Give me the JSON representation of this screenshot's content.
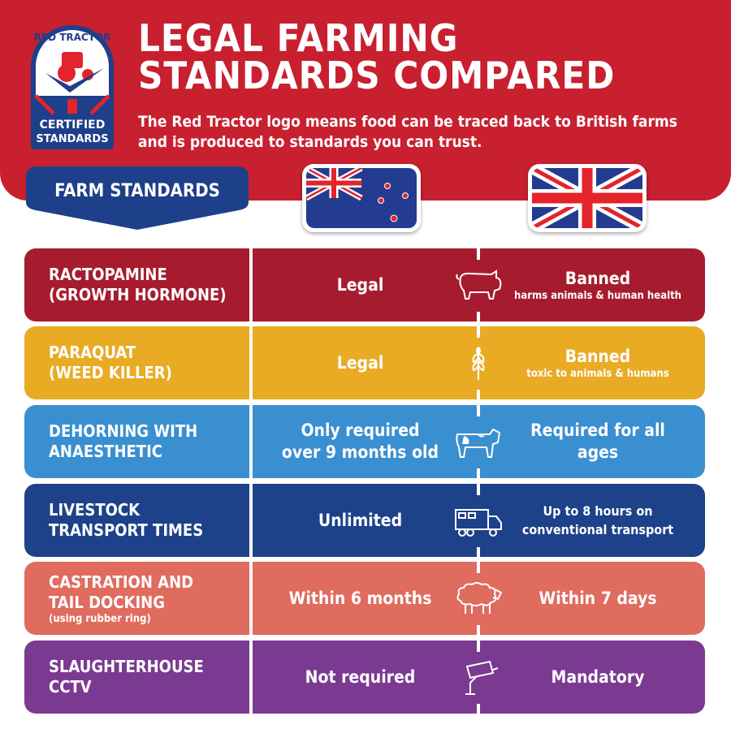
{
  "logo": {
    "top_text": "RED TRACTOR",
    "bottom_line1": "CERTIFIED",
    "bottom_line2": "STANDARDS"
  },
  "header": {
    "title_line1": "LEGAL FARMING",
    "title_line2": "STANDARDS COMPARED",
    "subtitle": "The Red Tractor logo means food can be traced back to British farms and is produced to standards you can trust."
  },
  "column_header": "FARM STANDARDS",
  "flags": [
    "new-zealand-flag",
    "united-kingdom-flag"
  ],
  "rows": [
    {
      "label1": "RACTOPAMINE",
      "label2": "(GROWTH HORMONE)",
      "note": "",
      "nz": "Legal",
      "icon": "pig-icon",
      "uk": "Banned",
      "uk_note": "harms animals & human health",
      "color": "#a61c2e"
    },
    {
      "label1": "PARAQUAT",
      "label2": "(WEED KILLER)",
      "note": "",
      "nz": "Legal",
      "icon": "wheat-icon",
      "uk": "Banned",
      "uk_note": "toxic to animals & humans",
      "color": "#e9ab24"
    },
    {
      "label1": "DEHORNING WITH",
      "label2": "ANAESTHETIC",
      "note": "",
      "nz": "Only required over 9 months old",
      "icon": "cow-icon",
      "uk": "Required for all ages",
      "uk_note": "",
      "color": "#3a8fd0"
    },
    {
      "label1": "LIVESTOCK",
      "label2": "TRANSPORT TIMES",
      "note": "",
      "nz": "Unlimited",
      "icon": "truck-icon",
      "uk": "Up to 8 hours on conventional transport",
      "uk_note": "",
      "color": "#1e4289"
    },
    {
      "label1": "CASTRATION AND",
      "label2": "TAIL DOCKING",
      "note": "(using rubber ring)",
      "nz": "Within 6 months",
      "icon": "sheep-icon",
      "uk": "Within 7 days",
      "uk_note": "",
      "color": "#e06b5f"
    },
    {
      "label1": "SLAUGHTERHOUSE",
      "label2": "CCTV",
      "note": "",
      "nz": "Not required",
      "icon": "cctv-camera-icon",
      "uk": "Mandatory",
      "uk_note": "",
      "color": "#7b3a91"
    }
  ]
}
